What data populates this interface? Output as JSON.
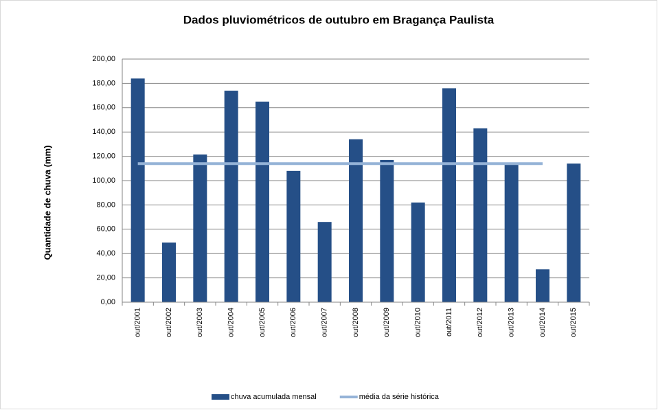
{
  "chart_data": {
    "type": "bar",
    "title": "Dados pluviométricos de outubro em Bragança Paulista",
    "y_axis_label": "Quantidade de chuva (mm)",
    "categories": [
      "out/2001",
      "out/2002",
      "out/2003",
      "out/2004",
      "out/2005",
      "out/2006",
      "out/2007",
      "out/2008",
      "out/2009",
      "out/2010",
      "out/2011",
      "out/2012",
      "out/2013",
      "out/2014",
      "out/2015"
    ],
    "series": [
      {
        "name": "chuva acumulada mensal",
        "type": "bar",
        "color": "#254f87",
        "values": [
          184,
          49,
          121.5,
          174,
          165,
          108,
          66,
          134,
          117,
          82,
          176,
          143,
          114,
          27,
          114
        ]
      },
      {
        "name": "média da série histórica",
        "type": "line",
        "color": "#95b3d7",
        "values": [
          114,
          114,
          114,
          114,
          114,
          114,
          114,
          114,
          114,
          114,
          114,
          114,
          114,
          114,
          null
        ]
      }
    ],
    "ylim": [
      0,
      200
    ],
    "yticks": [
      {
        "value": 0,
        "label": "0,00"
      },
      {
        "value": 20,
        "label": "20,00"
      },
      {
        "value": 40,
        "label": "40,00"
      },
      {
        "value": 60,
        "label": "60,00"
      },
      {
        "value": 80,
        "label": "80,00"
      },
      {
        "value": 100,
        "label": "100,00"
      },
      {
        "value": 120,
        "label": "120,00"
      },
      {
        "value": 140,
        "label": "140,00"
      },
      {
        "value": 160,
        "label": "160,00"
      },
      {
        "value": 180,
        "label": "180,00"
      },
      {
        "value": 200,
        "label": "200,00"
      }
    ],
    "grid": true,
    "legend": "bottom"
  }
}
